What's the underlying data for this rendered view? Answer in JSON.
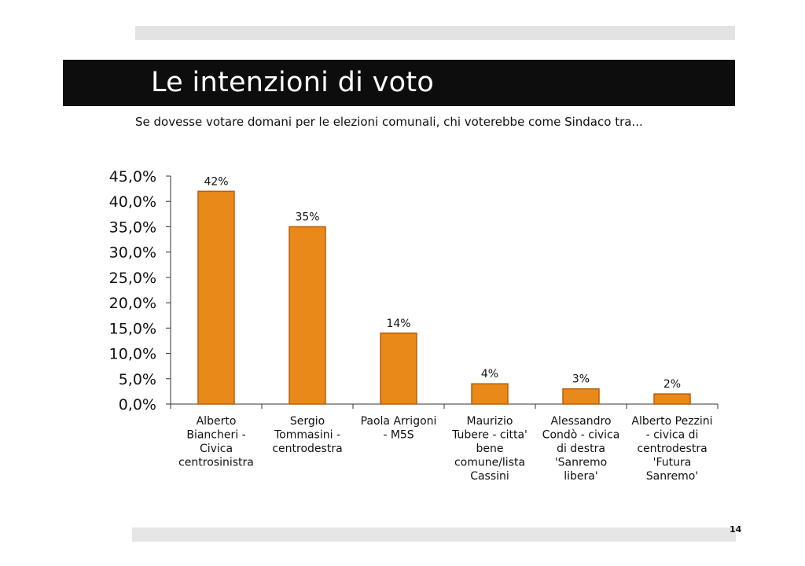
{
  "slide": {
    "title": "Le intenzioni di voto",
    "subtitle": "Se dovesse votare domani per le elezioni comunali, chi voterebbe come Sindaco tra...",
    "page_number": "14"
  },
  "colors": {
    "bar_fill": "#e8891a",
    "bar_stroke": "#b85f08",
    "title_bar": "#0d0d0d"
  },
  "chart_data": {
    "type": "bar",
    "categories": [
      "Alberto Biancheri - Civica centrosinistra",
      "Sergio Tommasini - centrodestra",
      "Paola Arrigoni - M5S",
      "Maurizio Tubere - citta' bene comune/lista Cassini",
      "Alessandro Condò - civica di destra 'Sanremo libera'",
      "Alberto Pezzini - civica di centrodestra 'Futura Sanremo'"
    ],
    "category_lines": [
      [
        "Alberto",
        "Biancheri -",
        "Civica",
        "centrosinistra"
      ],
      [
        "Sergio",
        "Tommasini -",
        "centrodestra"
      ],
      [
        "Paola Arrigoni",
        "- M5S"
      ],
      [
        "Maurizio",
        "Tubere - citta'",
        "bene",
        "comune/lista",
        "Cassini"
      ],
      [
        "Alessandro",
        "Condò - civica",
        "di destra",
        "'Sanremo",
        "libera'"
      ],
      [
        "Alberto Pezzini",
        "- civica di",
        "centrodestra",
        "'Futura",
        "Sanremo'"
      ]
    ],
    "values": [
      42,
      35,
      14,
      4,
      3,
      2
    ],
    "data_labels": [
      "42%",
      "35%",
      "14%",
      "4%",
      "3%",
      "2%"
    ],
    "yticks": [
      "0,0%",
      "5,0%",
      "10,0%",
      "15,0%",
      "20,0%",
      "25,0%",
      "30,0%",
      "35,0%",
      "40,0%",
      "45,0%"
    ],
    "ylim": [
      0,
      45
    ],
    "ystep": 5,
    "grid": false,
    "legend": "none",
    "title": "",
    "xlabel": "",
    "ylabel": ""
  }
}
